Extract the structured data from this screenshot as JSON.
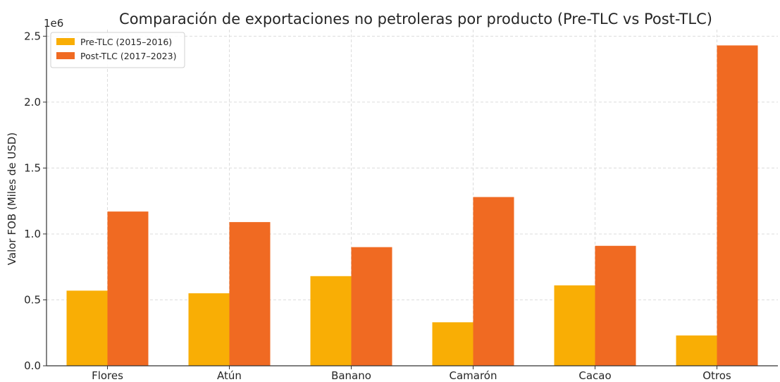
{
  "chart_data": {
    "type": "bar",
    "title": "Comparación de exportaciones no petroleras por producto (Pre-TLC vs Post-TLC)",
    "xlabel": "",
    "ylabel": "Valor FOB (Miles de USD)",
    "y_offset_label": "1e6",
    "ylim": [
      0,
      2.55
    ],
    "y_ticks": [
      "0.0",
      "0.5",
      "1.0",
      "1.5",
      "2.0",
      "2.5"
    ],
    "y_tick_values": [
      0,
      0.5,
      1.0,
      1.5,
      2.0,
      2.5
    ],
    "grid": true,
    "legend_position": "top-left",
    "categories": [
      "Flores",
      "Atún",
      "Banano",
      "Camarón",
      "Cacao",
      "Otros"
    ],
    "series": [
      {
        "name": "Pre-TLC (2015–2016)",
        "color": "#F9AE05",
        "values": [
          0.57,
          0.55,
          0.68,
          0.33,
          0.61,
          0.23
        ]
      },
      {
        "name": "Post-TLC (2017–2023)",
        "color": "#F06A22",
        "values": [
          1.17,
          1.09,
          0.9,
          1.28,
          0.91,
          2.43
        ]
      }
    ]
  }
}
